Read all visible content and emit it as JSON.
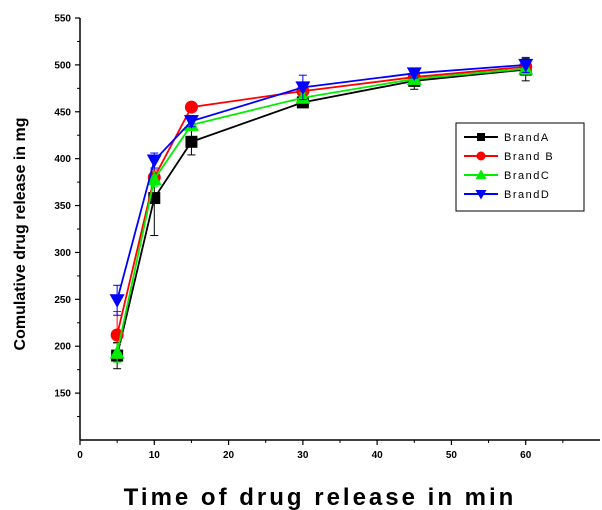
{
  "chart_data": {
    "type": "line",
    "title": "",
    "xlabel": "Time of drug release in min",
    "ylabel": "Comulative drug release in mg",
    "xlim": [
      0,
      70
    ],
    "ylim": [
      100,
      550
    ],
    "x_ticks": [
      0,
      10,
      20,
      30,
      40,
      50,
      60
    ],
    "y_ticks": [
      150,
      200,
      250,
      300,
      350,
      400,
      450,
      500,
      550
    ],
    "legend_position": "right",
    "grid": false,
    "x": [
      5,
      10,
      15,
      30,
      45,
      60
    ],
    "series": [
      {
        "name": "BrandA",
        "color": "#000000",
        "marker": "square",
        "values": [
          190,
          358,
          418,
          460,
          483,
          495
        ],
        "error": [
          14,
          40,
          14,
          5,
          9,
          12
        ]
      },
      {
        "name": "Brand B",
        "color": "#ff0000",
        "marker": "circle",
        "values": [
          212,
          380,
          455,
          472,
          487,
          498
        ],
        "error": [
          25,
          8,
          5,
          4,
          5,
          6
        ]
      },
      {
        "name": "BrandC",
        "color": "#00ee00",
        "marker": "triangle-up",
        "values": [
          193,
          378,
          436,
          465,
          485,
          496
        ],
        "error": [
          10,
          8,
          6,
          5,
          5,
          6
        ]
      },
      {
        "name": "BrandD",
        "color": "#0000ff",
        "marker": "triangle-down",
        "values": [
          249,
          398,
          440,
          476,
          491,
          500
        ],
        "error": [
          16,
          8,
          6,
          13,
          5,
          8
        ]
      }
    ]
  }
}
